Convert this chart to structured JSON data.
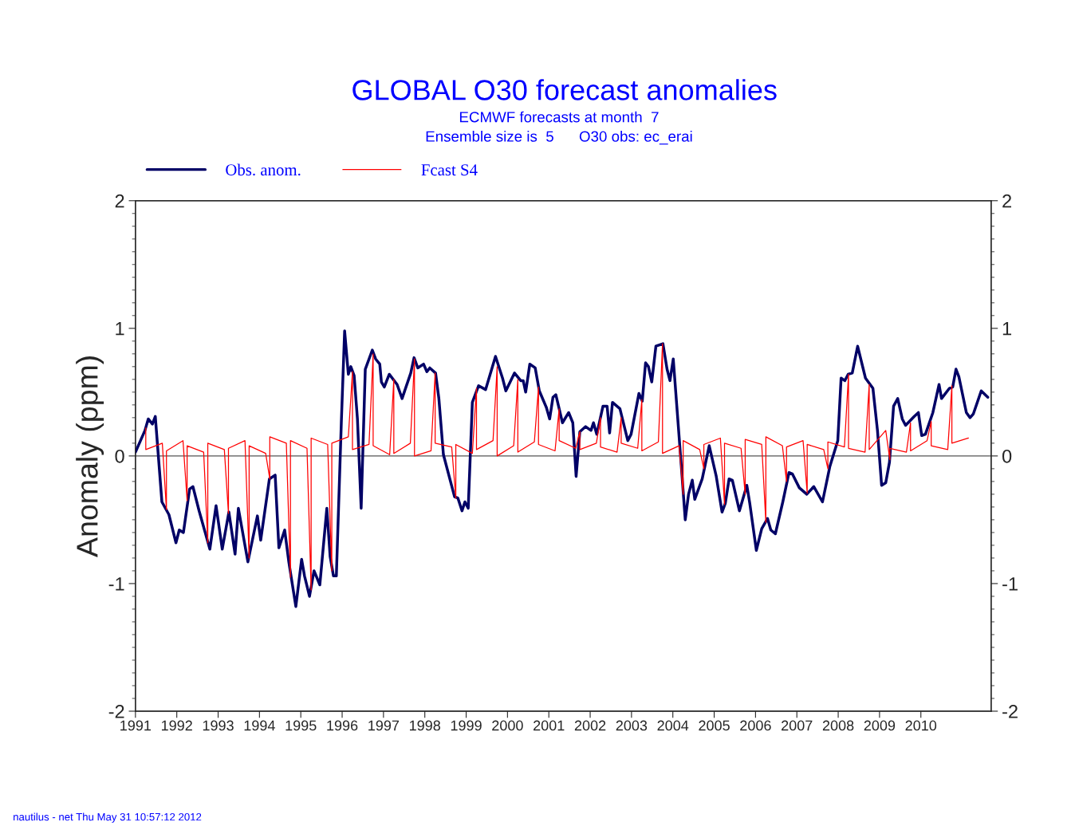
{
  "chart_data": {
    "type": "line",
    "title": "GLOBAL O30 forecast anomalies",
    "subtitle": "ECMWF forecasts at month  7\nEnsemble size is  5      O30 obs: ec_erai",
    "ylabel": "Anomaly (ppm)",
    "annotations": [
      "nautilus - net Thu May 31 10:57:12 2012"
    ],
    "xlim": [
      1991,
      2011.7
    ],
    "xticks": [
      1991,
      1992,
      1993,
      1994,
      1995,
      1996,
      1997,
      1998,
      1999,
      2000,
      2001,
      2002,
      2003,
      2004,
      2005,
      2006,
      2007,
      2008,
      2009,
      2010
    ],
    "ylim": [
      -2,
      2
    ],
    "yticks": [
      -2,
      -1,
      0,
      1,
      2
    ],
    "y2lim": [
      -2,
      2
    ],
    "y2ticks": [
      -2,
      -1,
      0,
      1,
      2
    ],
    "ref_lines": [
      {
        "axis": "y",
        "value": 0,
        "color": "#555555"
      }
    ],
    "legend": "top left",
    "grid": false,
    "series": [
      {
        "name": "Obs. anom.",
        "color": "#000066",
        "x": [
          1991.0,
          1991.23,
          1991.31,
          1991.41,
          1991.48,
          1991.64,
          1991.81,
          1991.98,
          1992.06,
          1992.16,
          1992.31,
          1992.39,
          1992.54,
          1992.8,
          1992.95,
          1993.1,
          1993.26,
          1993.41,
          1993.49,
          1993.72,
          1993.95,
          1994.03,
          1994.24,
          1994.38,
          1994.47,
          1994.61,
          1994.71,
          1994.88,
          1995.02,
          1995.09,
          1995.21,
          1995.32,
          1995.46,
          1995.63,
          1995.71,
          1995.79,
          1995.86,
          1995.98,
          1996.06,
          1996.15,
          1996.21,
          1996.29,
          1996.37,
          1996.46,
          1996.56,
          1996.73,
          1996.81,
          1996.91,
          1996.95,
          1997.02,
          1997.14,
          1997.33,
          1997.45,
          1997.66,
          1997.74,
          1997.83,
          1997.97,
          1998.05,
          1998.12,
          1998.26,
          1998.34,
          1998.45,
          1998.72,
          1998.8,
          1998.9,
          1998.97,
          1999.05,
          1999.15,
          1999.3,
          1999.47,
          1999.71,
          1999.88,
          1999.96,
          2000.17,
          2000.32,
          2000.38,
          2000.44,
          2000.54,
          2000.67,
          2000.77,
          2000.94,
          2001.02,
          2001.1,
          2001.17,
          2001.33,
          2001.48,
          2001.58,
          2001.66,
          2001.75,
          2001.89,
          2002.02,
          2002.08,
          2002.16,
          2002.31,
          2002.41,
          2002.47,
          2002.54,
          2002.72,
          2002.91,
          2002.99,
          2003.18,
          2003.26,
          2003.34,
          2003.41,
          2003.49,
          2003.59,
          2003.76,
          2003.86,
          2003.93,
          2004.01,
          2004.11,
          2004.2,
          2004.3,
          2004.38,
          2004.47,
          2004.53,
          2004.71,
          2004.88,
          2005.05,
          2005.19,
          2005.27,
          2005.36,
          2005.44,
          2005.61,
          2005.79,
          2005.86,
          2006.02,
          2006.15,
          2006.29,
          2006.37,
          2006.48,
          2006.66,
          2006.81,
          2006.89,
          2007.06,
          2007.24,
          2007.41,
          2007.62,
          2007.8,
          2007.99,
          2008.07,
          2008.16,
          2008.24,
          2008.34,
          2008.47,
          2008.66,
          2008.84,
          2008.95,
          2009.05,
          2009.15,
          2009.24,
          2009.34,
          2009.44,
          2009.55,
          2009.63,
          2009.84,
          2009.94,
          2010.02,
          2010.11,
          2010.29,
          2010.44,
          2010.5,
          2010.69,
          2010.77,
          2010.85,
          2010.92,
          2011.1,
          2011.19,
          2011.27,
          2011.46,
          2011.62
        ],
        "values": [
          0.03,
          0.2,
          0.29,
          0.25,
          0.31,
          -0.36,
          -0.46,
          -0.68,
          -0.58,
          -0.6,
          -0.26,
          -0.24,
          -0.43,
          -0.73,
          -0.39,
          -0.73,
          -0.44,
          -0.77,
          -0.41,
          -0.83,
          -0.47,
          -0.66,
          -0.18,
          -0.15,
          -0.72,
          -0.58,
          -0.83,
          -1.18,
          -0.81,
          -0.94,
          -1.1,
          -0.9,
          -1.01,
          -0.41,
          -0.79,
          -0.94,
          -0.94,
          0.26,
          0.98,
          0.64,
          0.7,
          0.63,
          0.29,
          -0.41,
          0.68,
          0.83,
          0.76,
          0.72,
          0.58,
          0.54,
          0.64,
          0.56,
          0.45,
          0.65,
          0.77,
          0.69,
          0.72,
          0.66,
          0.69,
          0.65,
          0.45,
          0.01,
          -0.32,
          -0.33,
          -0.43,
          -0.36,
          -0.41,
          0.42,
          0.55,
          0.52,
          0.78,
          0.61,
          0.51,
          0.65,
          0.59,
          0.59,
          0.5,
          0.72,
          0.69,
          0.51,
          0.38,
          0.29,
          0.46,
          0.48,
          0.26,
          0.34,
          0.26,
          -0.16,
          0.19,
          0.23,
          0.2,
          0.26,
          0.17,
          0.39,
          0.39,
          0.18,
          0.42,
          0.37,
          0.12,
          0.17,
          0.49,
          0.43,
          0.73,
          0.7,
          0.58,
          0.86,
          0.88,
          0.68,
          0.59,
          0.76,
          0.33,
          -0.06,
          -0.5,
          -0.3,
          -0.19,
          -0.34,
          -0.18,
          0.08,
          -0.16,
          -0.44,
          -0.37,
          -0.18,
          -0.19,
          -0.43,
          -0.23,
          -0.37,
          -0.74,
          -0.57,
          -0.49,
          -0.58,
          -0.61,
          -0.36,
          -0.13,
          -0.14,
          -0.25,
          -0.3,
          -0.24,
          -0.36,
          -0.08,
          0.12,
          0.61,
          0.59,
          0.64,
          0.65,
          0.86,
          0.61,
          0.53,
          0.2,
          -0.23,
          -0.21,
          -0.05,
          0.39,
          0.45,
          0.29,
          0.24,
          0.31,
          0.34,
          0.16,
          0.17,
          0.34,
          0.56,
          0.45,
          0.53,
          0.54,
          0.68,
          0.62,
          0.34,
          0.3,
          0.33,
          0.51,
          0.46
        ]
      },
      {
        "name": "Fcast S4",
        "color": "#ff0000",
        "x": [
          1991.25,
          1991.25,
          1991.65,
          1991.75,
          1991.75,
          1992.15,
          1992.25,
          1992.25,
          1992.65,
          1992.75,
          1992.75,
          1993.15,
          1993.25,
          1993.25,
          1993.65,
          1993.75,
          1993.75,
          1994.15,
          1994.25,
          1994.25,
          1994.65,
          1994.75,
          1994.75,
          1995.15,
          1995.25,
          1995.25,
          1995.65,
          1995.75,
          1995.75,
          1996.15,
          1996.25,
          1996.25,
          1996.65,
          1996.75,
          1996.75,
          1997.15,
          1997.25,
          1997.25,
          1997.65,
          1997.75,
          1997.75,
          1998.15,
          1998.25,
          1998.25,
          1998.65,
          1998.75,
          1998.75,
          1999.15,
          1999.25,
          1999.25,
          1999.65,
          1999.75,
          1999.75,
          2000.15,
          2000.25,
          2000.25,
          2000.65,
          2000.75,
          2000.75,
          2001.15,
          2001.25,
          2001.25,
          2001.65,
          2001.75,
          2001.75,
          2002.15,
          2002.25,
          2002.25,
          2002.65,
          2002.75,
          2002.75,
          2003.15,
          2003.25,
          2003.25,
          2003.65,
          2003.75,
          2003.75,
          2004.15,
          2004.25,
          2004.25,
          2004.65,
          2004.75,
          2004.75,
          2005.15,
          2005.25,
          2005.25,
          2005.65,
          2005.75,
          2005.75,
          2006.15,
          2006.25,
          2006.25,
          2006.65,
          2006.75,
          2006.75,
          2007.15,
          2007.25,
          2007.25,
          2007.65,
          2007.75,
          2007.75,
          2008.15,
          2008.25,
          2008.25,
          2008.65,
          2008.75,
          2008.75,
          2009.15,
          2009.25,
          2009.25,
          2009.65,
          2009.75,
          2009.75,
          2010.15,
          2010.25,
          2010.25,
          2010.65,
          2010.75,
          2010.75,
          2011.15
        ],
        "values": [
          0.22,
          0.05,
          0.1,
          -0.42,
          0.04,
          0.12,
          -0.35,
          0.08,
          0.03,
          -0.68,
          0.1,
          0.05,
          -0.45,
          0.06,
          0.12,
          -0.8,
          0.08,
          0.02,
          -0.18,
          0.15,
          0.1,
          -0.95,
          0.12,
          0.06,
          -1.05,
          0.14,
          0.09,
          -0.9,
          0.1,
          0.15,
          0.66,
          0.05,
          0.09,
          0.8,
          0.08,
          0.01,
          0.6,
          0.02,
          0.1,
          0.76,
          0.0,
          0.04,
          0.65,
          0.1,
          0.07,
          -0.33,
          0.09,
          0.02,
          0.53,
          0.05,
          0.12,
          0.7,
          0.0,
          0.08,
          0.6,
          0.03,
          0.11,
          0.54,
          0.09,
          0.04,
          0.37,
          0.12,
          0.06,
          0.19,
          0.05,
          0.1,
          0.3,
          0.07,
          0.03,
          0.3,
          0.1,
          0.06,
          0.44,
          0.04,
          0.11,
          0.88,
          0.02,
          0.08,
          -0.3,
          0.12,
          0.05,
          -0.1,
          0.09,
          0.14,
          -0.38,
          0.1,
          0.06,
          -0.3,
          0.13,
          0.09,
          -0.52,
          0.15,
          0.08,
          -0.2,
          0.07,
          0.12,
          -0.29,
          0.09,
          0.05,
          -0.1,
          0.11,
          0.07,
          0.64,
          0.06,
          0.03,
          0.56,
          0.05,
          0.2,
          -0.03,
          0.06,
          0.03,
          0.26,
          0.04,
          0.12,
          0.27,
          0.08,
          0.05,
          0.55,
          0.1,
          0.14
        ]
      }
    ]
  }
}
